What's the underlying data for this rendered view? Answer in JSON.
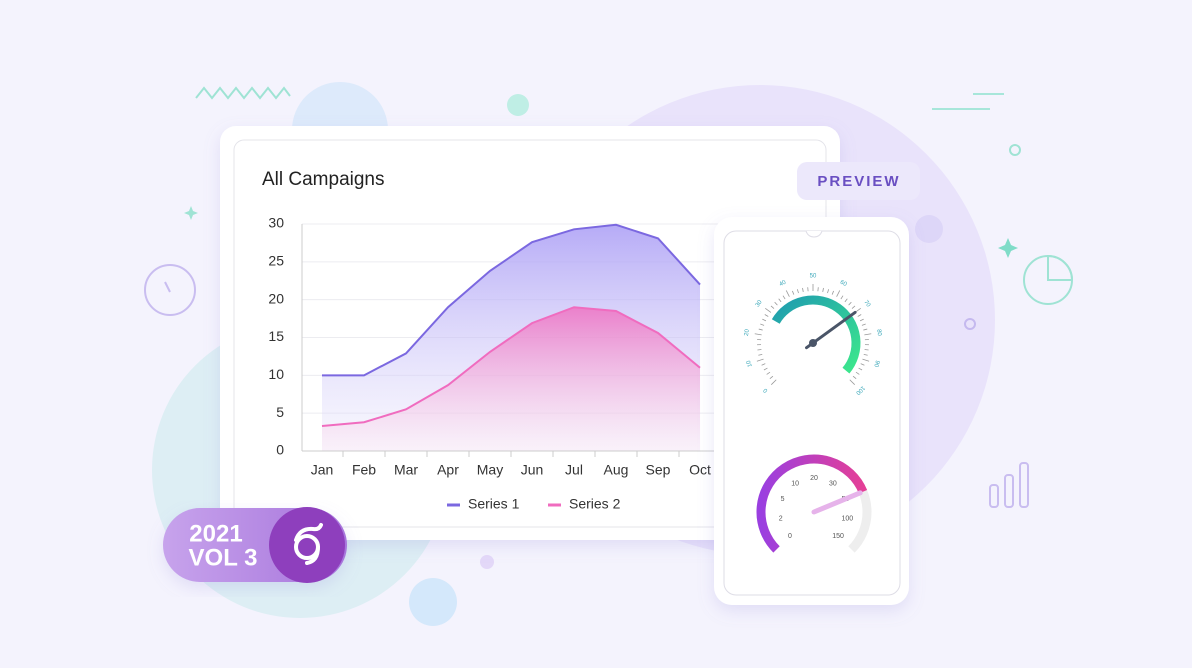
{
  "chart_data": {
    "type": "area",
    "title": "All Campaigns",
    "categories": [
      "Jan",
      "Feb",
      "Mar",
      "Apr",
      "May",
      "Jun",
      "Jul",
      "Aug",
      "Sep",
      "Oct"
    ],
    "series": [
      {
        "name": "Series 1",
        "color": "#7b68e0",
        "values": [
          10,
          10,
          12.9,
          19,
          23.8,
          27.6,
          29.3,
          29.9,
          28.1,
          22
        ]
      },
      {
        "name": "Series 2",
        "color": "#f06cbf",
        "values": [
          3.3,
          3.8,
          5.5,
          8.7,
          13.1,
          16.9,
          19,
          18.5,
          15.6,
          11
        ]
      }
    ],
    "ylim": [
      0,
      30
    ],
    "yticks": [
      0,
      5,
      10,
      15,
      20,
      25,
      30
    ],
    "grid": true,
    "legend": "bottom"
  },
  "preview_label": "PREVIEW",
  "badge": {
    "year": "2021",
    "volume": "VOL 3"
  },
  "gauges": [
    {
      "labels": [
        0,
        10,
        20,
        30,
        40,
        50,
        60,
        70,
        80,
        90,
        100
      ],
      "value": 70
    },
    {
      "labels": [
        0,
        2,
        5,
        10,
        20,
        30,
        50,
        100,
        150
      ],
      "value": 50
    }
  ]
}
